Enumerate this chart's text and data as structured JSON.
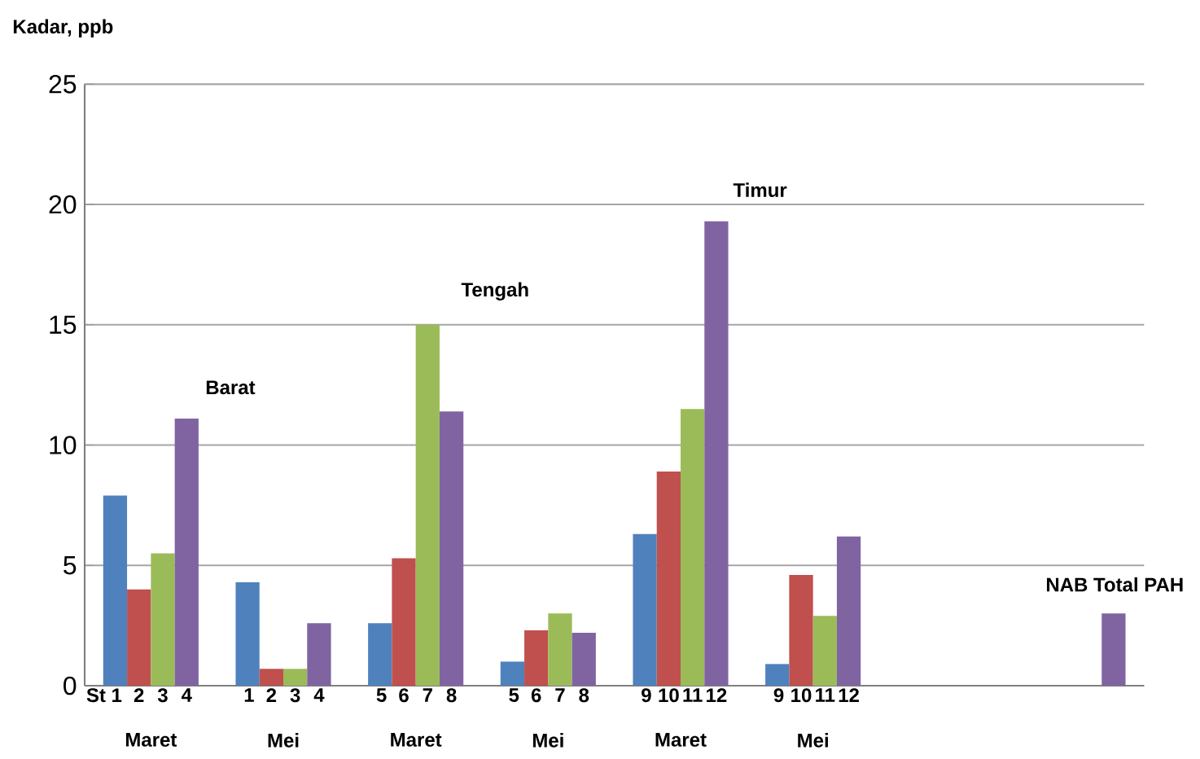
{
  "chart_data": {
    "type": "bar",
    "ylabel": "Kadar, ppb",
    "categories": [
      "Maret",
      "Mei",
      "Maret",
      "Mei",
      "Maret",
      "Mei",
      null,
      null
    ],
    "series": [
      {
        "color": "#4f81bd",
        "values": [
          7.9,
          4.3,
          2.6,
          1.0,
          6.3,
          0.9,
          null,
          null
        ]
      },
      {
        "color": "#c0504d",
        "values": [
          4.0,
          0.7,
          5.3,
          2.3,
          8.9,
          4.6,
          null,
          null
        ]
      },
      {
        "color": "#9bbb59",
        "values": [
          5.5,
          0.7,
          15.0,
          3.0,
          11.5,
          2.9,
          null,
          null
        ]
      },
      {
        "color": "#8064a2",
        "values": [
          11.1,
          2.6,
          11.4,
          2.2,
          19.3,
          6.2,
          null,
          3.0
        ]
      }
    ],
    "ylim": [
      0,
      25
    ],
    "yticks": [
      0,
      5,
      10,
      15,
      20,
      25
    ],
    "grid": "y",
    "annotations": [
      "St 1",
      "2",
      "3",
      "4",
      "1",
      "2",
      "3",
      "4",
      "5",
      "6",
      "7",
      "8",
      "5",
      "6",
      "7",
      "8",
      "9",
      "10",
      "11",
      "12",
      "9",
      "10",
      "11",
      "12",
      "Barat",
      "Tengah",
      "Timur",
      {
        "text": "NAB Total PAH",
        "y": 3.0
      }
    ]
  }
}
